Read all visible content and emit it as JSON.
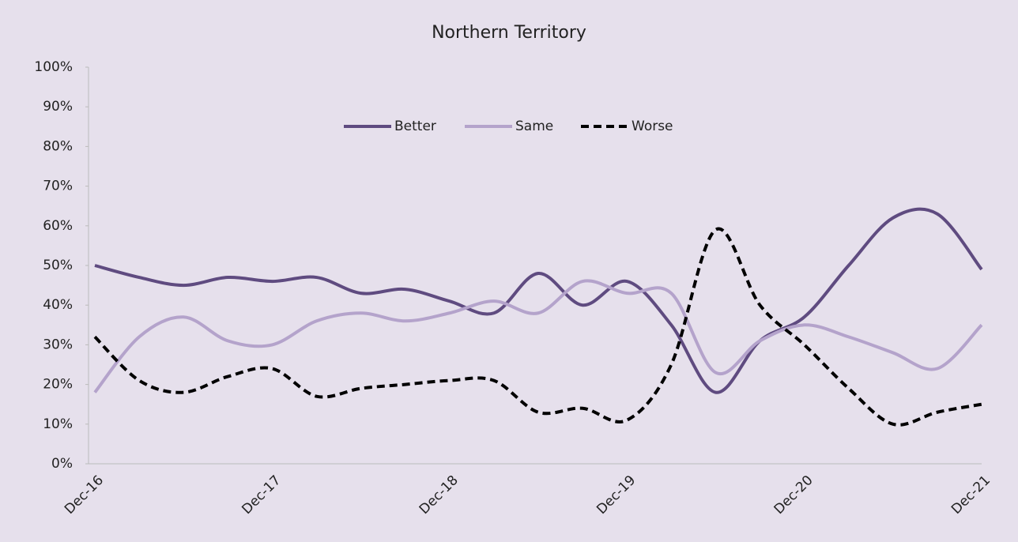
{
  "chart_data": {
    "type": "line",
    "title": "Northern Territory",
    "categories": [
      "Dec-16",
      null,
      null,
      null,
      "Dec-17",
      null,
      null,
      null,
      "Dec-18",
      null,
      null,
      null,
      "Dec-19",
      null,
      null,
      null,
      "Dec-20",
      null,
      null,
      null,
      "Dec-21"
    ],
    "series": [
      {
        "name": "Better",
        "color": "#5f4b80",
        "dash": false,
        "values": [
          50,
          47,
          45,
          47,
          46,
          47,
          43,
          44,
          41,
          38,
          48,
          40,
          46,
          35,
          18,
          31,
          37,
          50,
          62,
          63,
          49
        ]
      },
      {
        "name": "Same",
        "color": "#b4a3cb",
        "dash": false,
        "values": [
          18,
          32,
          37,
          31,
          30,
          36,
          38,
          36,
          38,
          41,
          38,
          46,
          43,
          43,
          23,
          31,
          35,
          32,
          28,
          24,
          35
        ]
      },
      {
        "name": "Worse",
        "color": "#000000",
        "dash": true,
        "values": [
          32,
          21,
          18,
          22,
          24,
          17,
          19,
          20,
          21,
          21,
          13,
          14,
          11,
          25,
          59,
          40,
          30,
          19,
          10,
          13,
          15
        ]
      }
    ],
    "ylim": [
      0,
      100
    ],
    "yticks": [
      {
        "value": 0,
        "label": "0%"
      },
      {
        "value": 10,
        "label": "10%"
      },
      {
        "value": 20,
        "label": "20%"
      },
      {
        "value": 30,
        "label": "30%"
      },
      {
        "value": 40,
        "label": "40%"
      },
      {
        "value": 50,
        "label": "50%"
      },
      {
        "value": 60,
        "label": "60%"
      },
      {
        "value": 70,
        "label": "70%"
      },
      {
        "value": 80,
        "label": "80%"
      },
      {
        "value": 90,
        "label": "90%"
      },
      {
        "value": 100,
        "label": "100%"
      }
    ],
    "grid": false,
    "legend": "top",
    "background": "#e6e0ec"
  }
}
